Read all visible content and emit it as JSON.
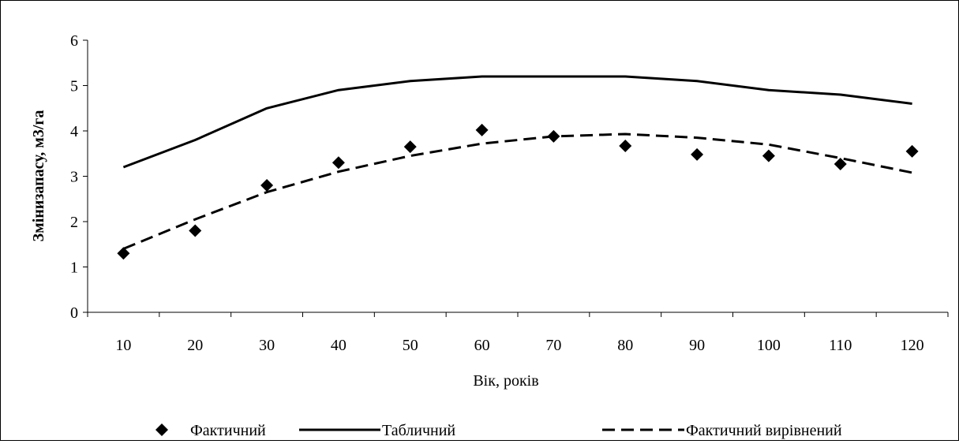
{
  "chart_data": {
    "type": "line",
    "title": "",
    "xlabel": "Вік, років",
    "ylabel": "Змінизапасу, м3/га",
    "categories": [
      "10",
      "20",
      "30",
      "40",
      "50",
      "60",
      "70",
      "80",
      "90",
      "100",
      "110",
      "120"
    ],
    "ylim": [
      0,
      6
    ],
    "yticks": [
      "0",
      "1",
      "2",
      "3",
      "4",
      "5",
      "6"
    ],
    "grid": false,
    "legend_position": "bottom",
    "series": [
      {
        "name": "Фактичний",
        "style": "markers",
        "marker": "diamond",
        "color": "#000000",
        "values": [
          1.3,
          1.8,
          2.8,
          3.3,
          3.65,
          4.02,
          3.88,
          3.67,
          3.48,
          3.45,
          3.27,
          3.55
        ]
      },
      {
        "name": "Табличний",
        "style": "solid",
        "color": "#000000",
        "values": [
          3.2,
          3.8,
          4.5,
          4.9,
          5.1,
          5.2,
          5.2,
          5.2,
          5.1,
          4.9,
          4.8,
          4.6
        ]
      },
      {
        "name": "Фактичний вирівнений",
        "style": "dashed",
        "color": "#000000",
        "values": [
          1.4,
          2.05,
          2.65,
          3.1,
          3.45,
          3.72,
          3.88,
          3.93,
          3.85,
          3.7,
          3.4,
          3.08
        ]
      }
    ]
  }
}
